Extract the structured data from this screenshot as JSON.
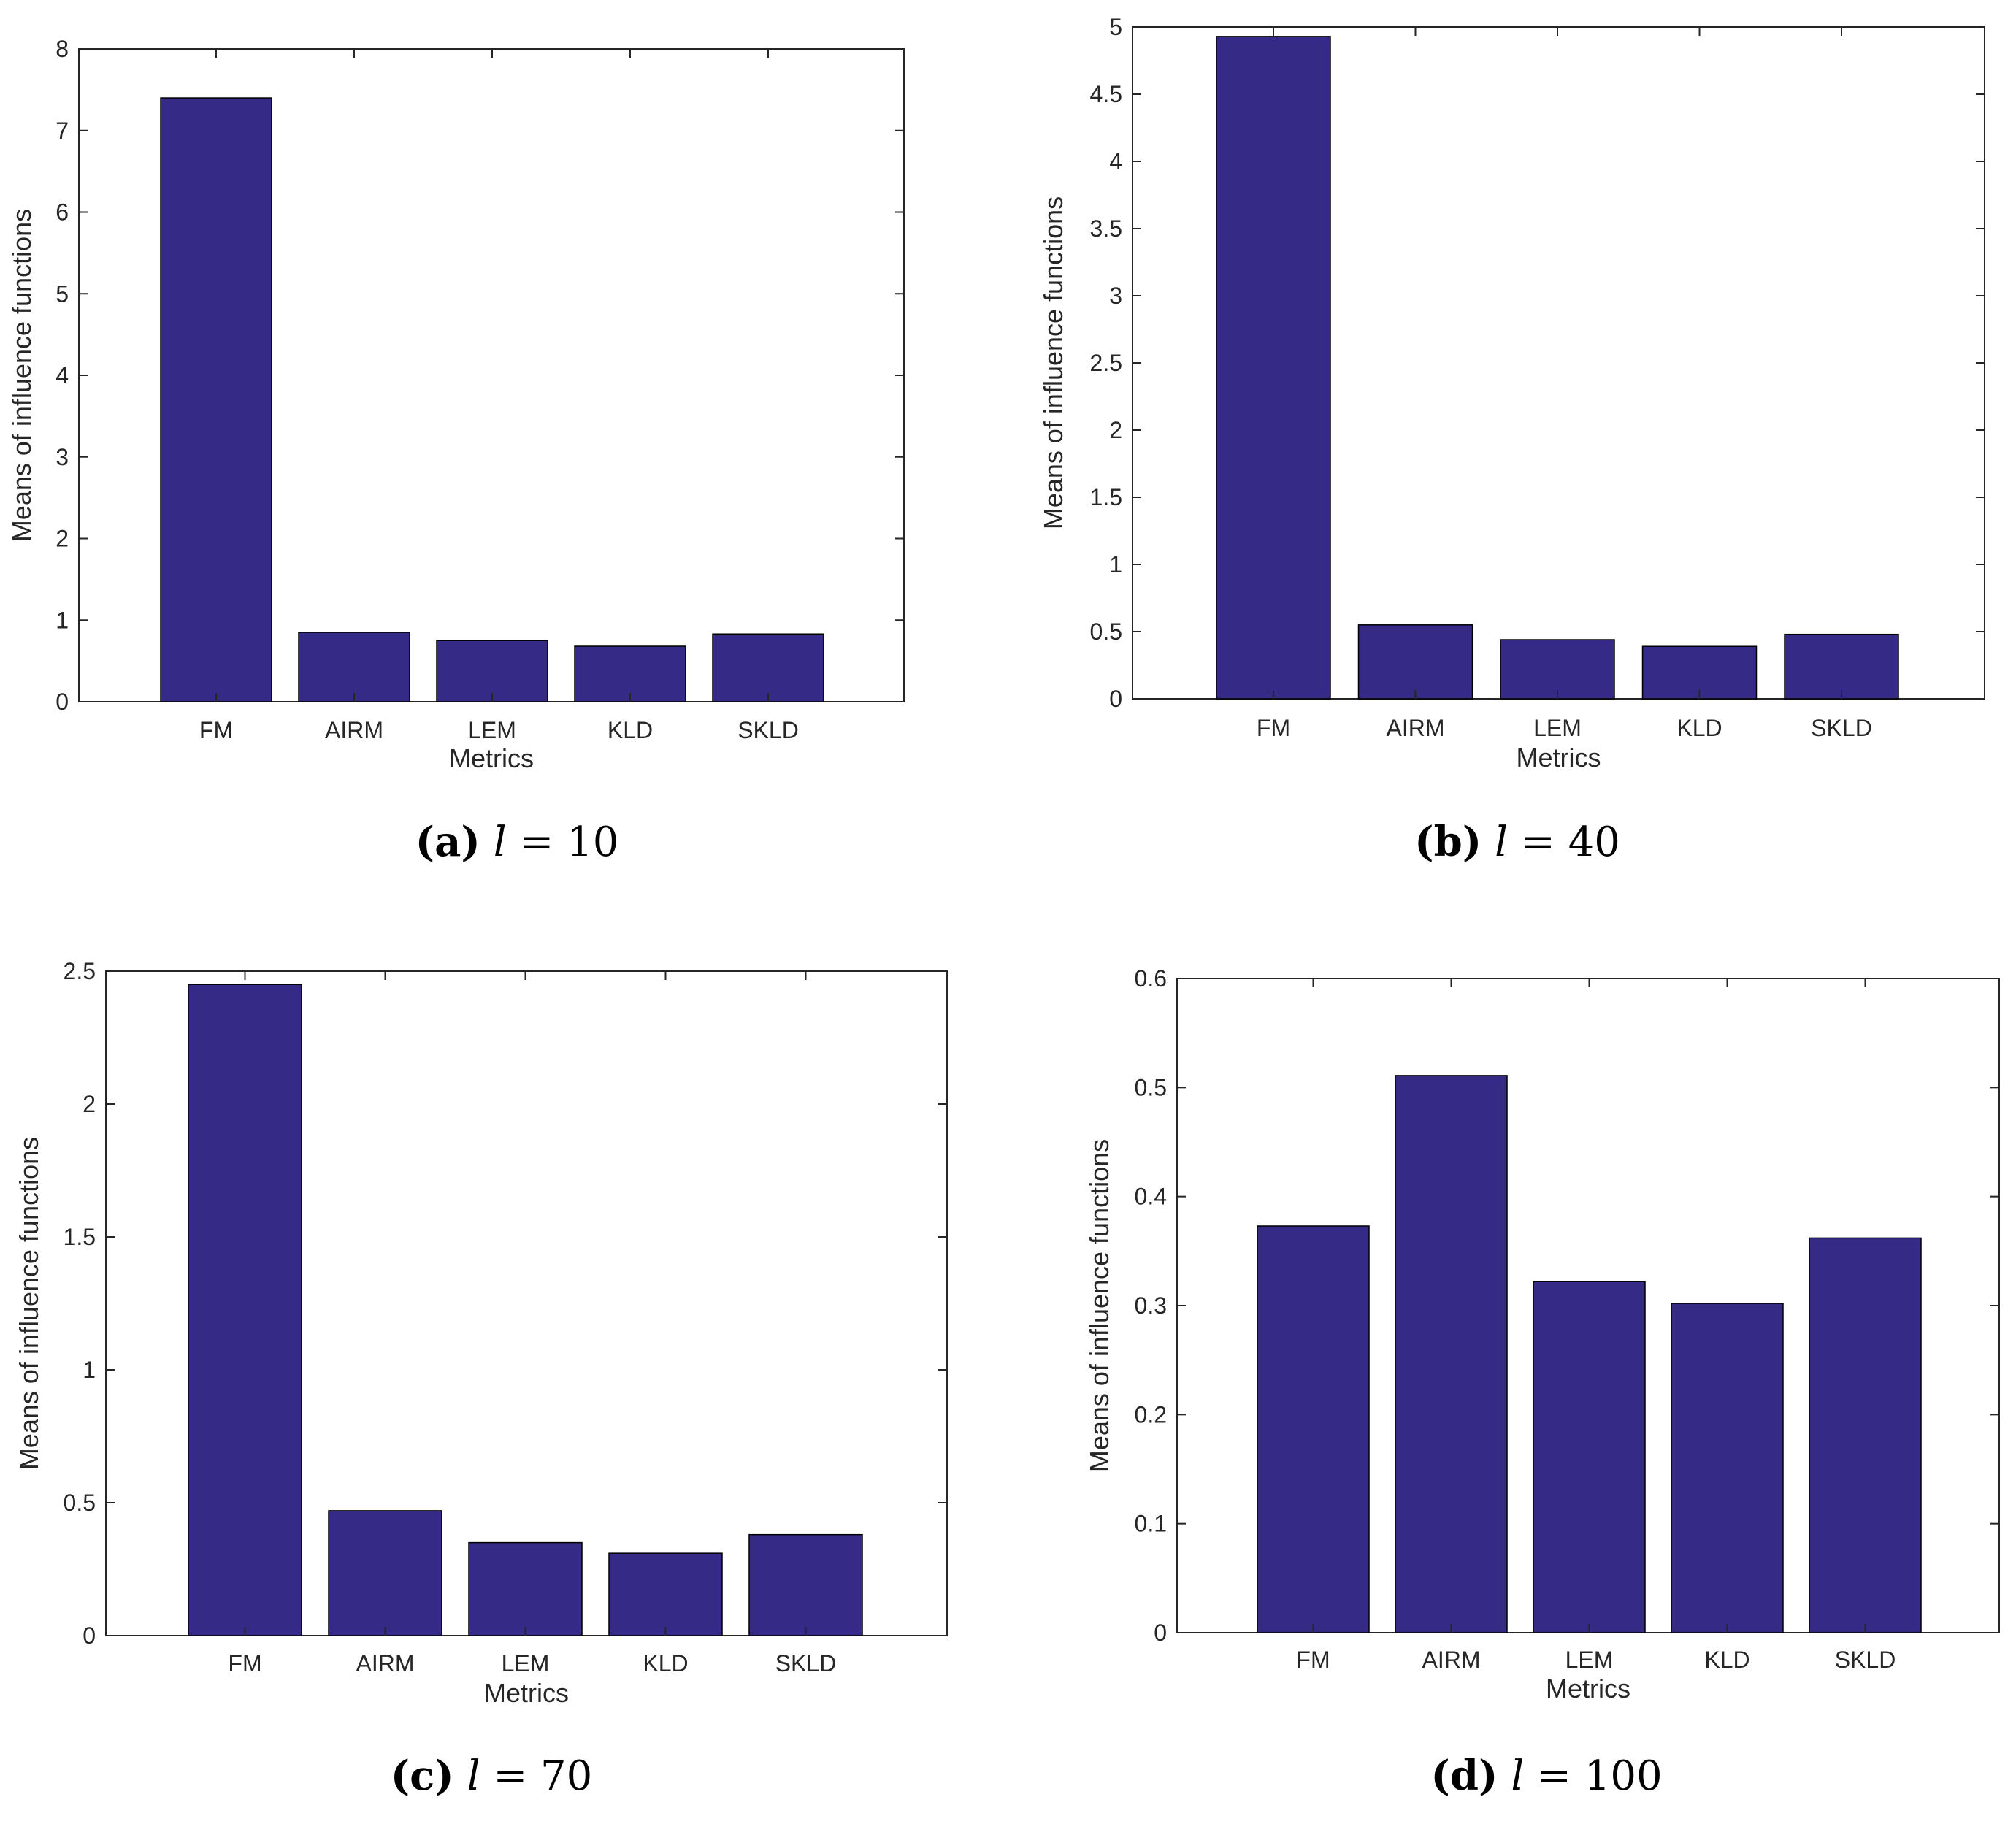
{
  "colors": {
    "bar": "#352a86",
    "axis": "#262626",
    "background": "#ffffff"
  },
  "chart_data": [
    {
      "type": "bar",
      "categories": [
        "FM",
        "AIRM",
        "LEM",
        "KLD",
        "SKLD"
      ],
      "values": [
        7.4,
        0.85,
        0.75,
        0.68,
        0.83
      ],
      "xlabel": "Metrics",
      "ylabel": "Means of influence functions",
      "ylim": [
        0,
        8
      ],
      "yticks": [
        "0",
        "1",
        "2",
        "3",
        "4",
        "5",
        "6",
        "7",
        "8"
      ],
      "grid": false,
      "caption": {
        "label": "(a)",
        "variable": "l",
        "equals": "= 10"
      }
    },
    {
      "type": "bar",
      "categories": [
        "FM",
        "AIRM",
        "LEM",
        "KLD",
        "SKLD"
      ],
      "values": [
        4.93,
        0.55,
        0.44,
        0.39,
        0.48
      ],
      "xlabel": "Metrics",
      "ylabel": "Means of influence functions",
      "ylim": [
        0,
        5
      ],
      "yticks": [
        "0",
        "0.5",
        "1",
        "1.5",
        "2",
        "2.5",
        "3",
        "3.5",
        "4",
        "4.5",
        "5"
      ],
      "grid": false,
      "caption": {
        "label": "(b)",
        "variable": "l",
        "equals": "= 40"
      }
    },
    {
      "type": "bar",
      "categories": [
        "FM",
        "AIRM",
        "LEM",
        "KLD",
        "SKLD"
      ],
      "values": [
        2.45,
        0.47,
        0.35,
        0.31,
        0.38
      ],
      "xlabel": "Metrics",
      "ylabel": "Means of influence functions",
      "ylim": [
        0,
        2.5
      ],
      "yticks": [
        "0",
        "0.5",
        "1",
        "1.5",
        "2",
        "2.5"
      ],
      "grid": false,
      "caption": {
        "label": "(c)",
        "variable": "l",
        "equals": "= 70"
      }
    },
    {
      "type": "bar",
      "categories": [
        "FM",
        "AIRM",
        "LEM",
        "KLD",
        "SKLD"
      ],
      "values": [
        0.373,
        0.511,
        0.322,
        0.302,
        0.362
      ],
      "xlabel": "Metrics",
      "ylabel": "Means of influence functions",
      "ylim": [
        0,
        0.6
      ],
      "yticks": [
        "0",
        "0.1",
        "0.2",
        "0.3",
        "0.4",
        "0.5",
        "0.6"
      ],
      "grid": false,
      "caption": {
        "label": "(d)",
        "variable": "l",
        "equals": "= 100"
      }
    }
  ]
}
